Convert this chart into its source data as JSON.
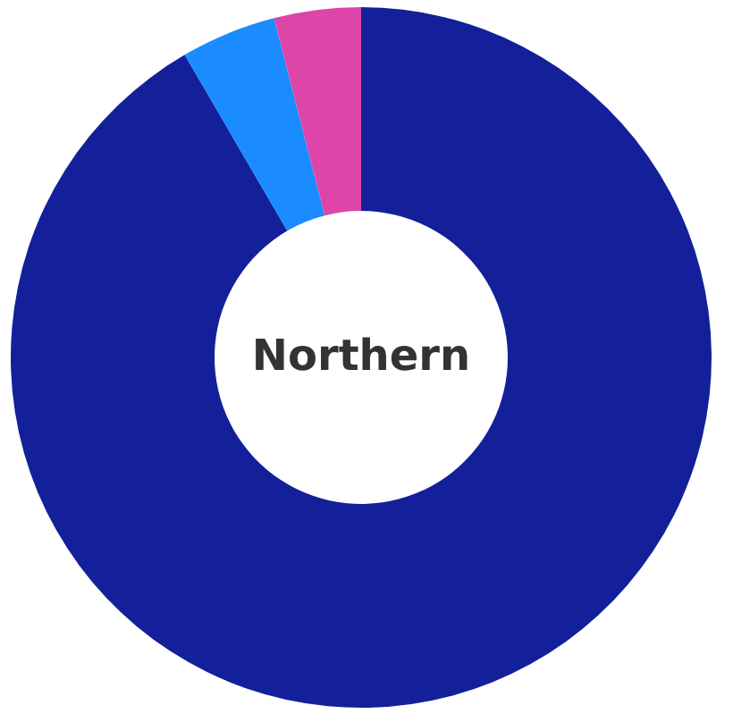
{
  "chart_data": {
    "type": "donut",
    "title": "Northern",
    "categories": [
      null,
      null,
      null
    ],
    "values": [
      91.6,
      4.4,
      4.0
    ],
    "colors": [
      "#13209a",
      "#1a8cff",
      "#dd45a8"
    ]
  }
}
